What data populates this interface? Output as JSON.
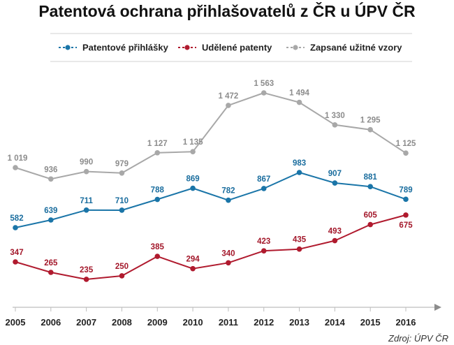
{
  "chart_data": {
    "type": "line",
    "title": "Patentová ochrana přihlašovatelů z ČR u ÚPV ČR",
    "source": "Zdroj: ÚPV ČR",
    "xlabel": "",
    "ylabel": "",
    "ylim": [
      0,
      1700
    ],
    "grid": false,
    "legend_position": "top",
    "categories": [
      "2005",
      "2006",
      "2007",
      "2008",
      "2009",
      "2010",
      "2011",
      "2012",
      "2013",
      "2014",
      "2015",
      "2016"
    ],
    "series": [
      {
        "name": "Patentové přihlášky",
        "color": "#1a75a8",
        "values": [
          582,
          639,
          711,
          710,
          788,
          869,
          782,
          867,
          983,
          907,
          881,
          789
        ],
        "labels": [
          "582",
          "639",
          "711",
          "710",
          "788",
          "869",
          "782",
          "867",
          "983",
          "907",
          "881",
          "789"
        ]
      },
      {
        "name": "Udělené patenty",
        "color": "#b01a2e",
        "values": [
          347,
          265,
          235,
          250,
          385,
          294,
          340,
          423,
          435,
          493,
          605,
          675
        ],
        "labels": [
          "347",
          "265",
          "235",
          "250",
          "385",
          "294",
          "340",
          "423",
          "435",
          "493",
          "605",
          "675"
        ]
      },
      {
        "name": "Zapsané užitné vzory",
        "color": "#a8a8a8",
        "values": [
          1019,
          936,
          990,
          979,
          1127,
          1135,
          1472,
          1563,
          1494,
          1330,
          1295,
          1125
        ],
        "labels": [
          "1 019",
          "936",
          "990",
          "979",
          "1 127",
          "1 135",
          "1 472",
          "1 563",
          "1 494",
          "1 330",
          "1 295",
          "1 125"
        ]
      }
    ]
  }
}
